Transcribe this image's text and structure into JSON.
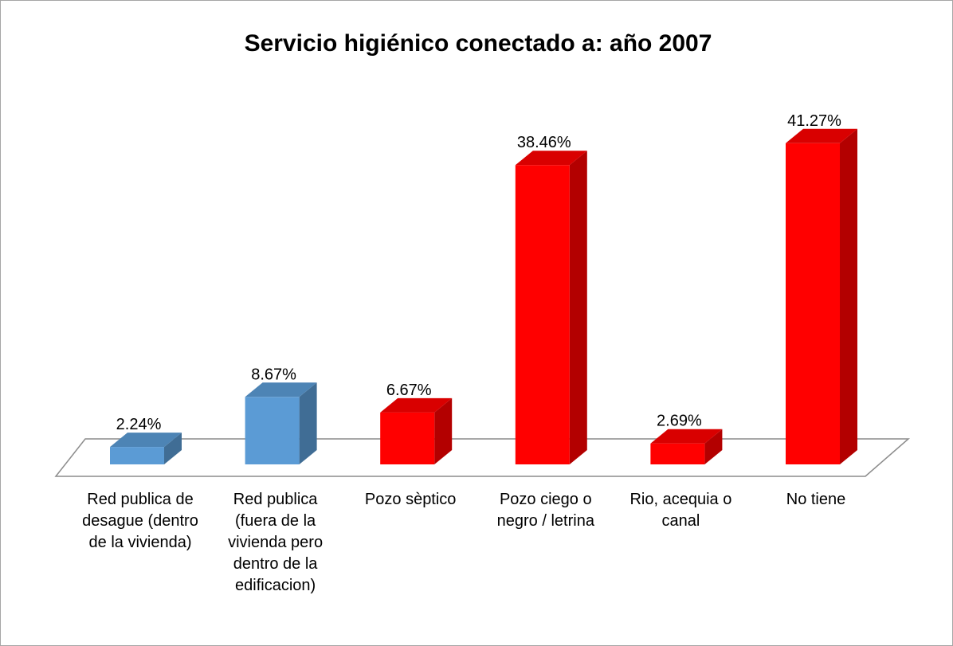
{
  "chart_data": {
    "type": "bar3d",
    "title": "Servicio higiénico conectado a:  año 2007",
    "categories": [
      "Red publica de desague (dentro de la vivienda)",
      "Red publica (fuera de la vivienda pero dentro de la edificacion)",
      "Pozo sèptico",
      "Pozo ciego o negro / letrina",
      "Rio, acequia o canal",
      "No tiene"
    ],
    "values": [
      2.24,
      8.67,
      6.67,
      38.46,
      2.69,
      41.27
    ],
    "value_labels": [
      "2.24%",
      "8.67%",
      "6.67%",
      "38.46%",
      "2.69%",
      "41.27%"
    ],
    "colors": [
      "#5b9bd5",
      "#5b9bd5",
      "#ff0000",
      "#ff0000",
      "#ff0000",
      "#ff0000"
    ]
  }
}
